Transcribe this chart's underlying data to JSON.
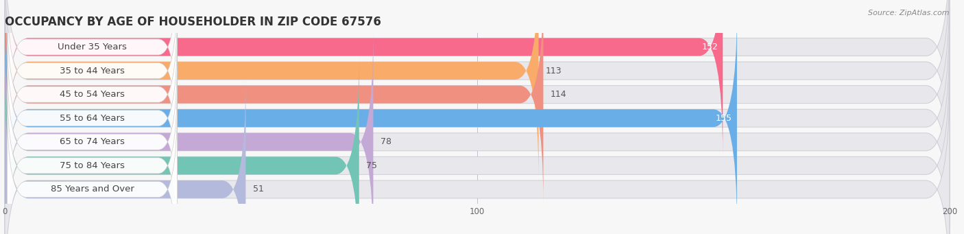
{
  "title": "OCCUPANCY BY AGE OF HOUSEHOLDER IN ZIP CODE 67576",
  "source": "Source: ZipAtlas.com",
  "categories": [
    "Under 35 Years",
    "35 to 44 Years",
    "45 to 54 Years",
    "55 to 64 Years",
    "65 to 74 Years",
    "75 to 84 Years",
    "85 Years and Over"
  ],
  "values": [
    152,
    113,
    114,
    155,
    78,
    75,
    51
  ],
  "bar_colors": [
    "#F76A8C",
    "#F9AB6A",
    "#F09080",
    "#6AAEE8",
    "#C4A8D6",
    "#72C4B5",
    "#B4BADC"
  ],
  "track_color": "#E8E8EC",
  "track_shadow": "#D0D0D8",
  "label_bg": "#FFFFFF",
  "xlim": [
    0,
    200
  ],
  "xticks": [
    0,
    100,
    200
  ],
  "title_fontsize": 12,
  "label_fontsize": 9.5,
  "value_fontsize": 9,
  "background_color": "#F7F7F7",
  "bar_height": 0.75,
  "n_bars": 7
}
